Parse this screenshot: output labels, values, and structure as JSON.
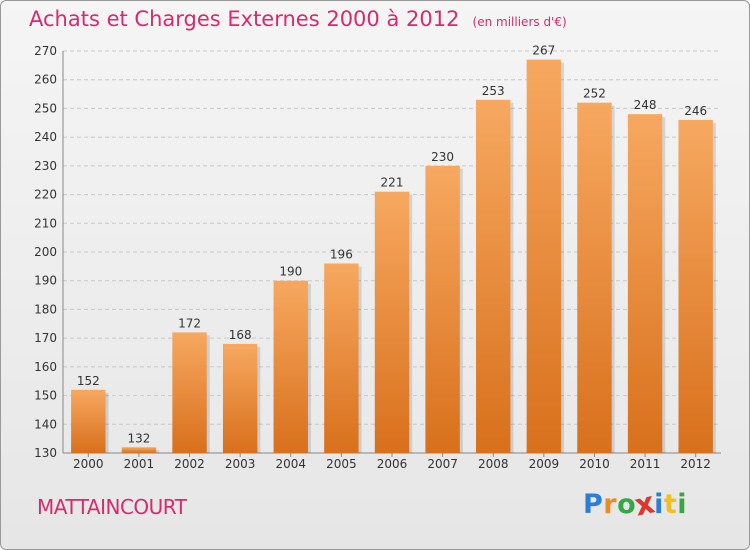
{
  "header": {
    "title": "Achats et Charges Externes 2000 à 2012",
    "unit": "(en milliers d'€)"
  },
  "footer": {
    "commune": "MATTAINCOURT",
    "logo": {
      "letters": [
        "P",
        "r",
        "o",
        "x",
        "i",
        "t",
        "i"
      ],
      "colors": [
        "#2a7fd4",
        "#f08a1c",
        "#35a845",
        "#e0352c",
        "#2a7fd4",
        "#f0c020",
        "#35a845"
      ]
    }
  },
  "colors": {
    "bar_top": "#f7a860",
    "bar_bottom": "#d8701c",
    "title": "#d82a6c",
    "grid": "#c8c8c8"
  },
  "chart_data": {
    "type": "bar",
    "categories": [
      "2000",
      "2001",
      "2002",
      "2003",
      "2004",
      "2005",
      "2006",
      "2007",
      "2008",
      "2009",
      "2010",
      "2011",
      "2012"
    ],
    "values": [
      152,
      132,
      172,
      168,
      190,
      196,
      221,
      230,
      253,
      267,
      252,
      248,
      246
    ],
    "yticks": [
      130,
      140,
      150,
      160,
      170,
      180,
      190,
      200,
      210,
      220,
      230,
      240,
      250,
      260,
      270
    ],
    "ylim": [
      130,
      270
    ],
    "grid": true,
    "xlabel": "",
    "ylabel": ""
  }
}
